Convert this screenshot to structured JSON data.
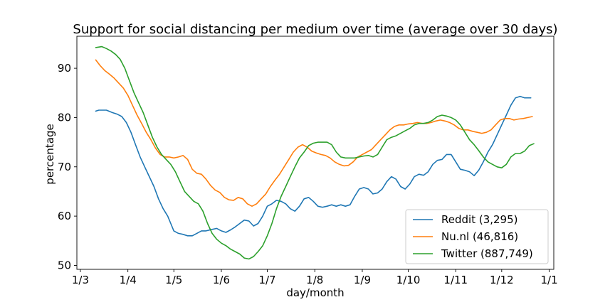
{
  "chart_data": {
    "type": "line",
    "title": "Support for social distancing per medium over time (average over 30 days)",
    "xlabel": "day/month",
    "ylabel": "percentage",
    "x_unit": "days since 1/3",
    "xlim": [
      -2.3,
      309
    ],
    "ylim": [
      49.2,
      96.5
    ],
    "xticks": [
      {
        "label": "1/3",
        "value": 0
      },
      {
        "label": "1/4",
        "value": 31
      },
      {
        "label": "1/5",
        "value": 61
      },
      {
        "label": "1/6",
        "value": 92
      },
      {
        "label": "1/7",
        "value": 122
      },
      {
        "label": "1/8",
        "value": 153
      },
      {
        "label": "1/9",
        "value": 184
      },
      {
        "label": "1/10",
        "value": 214
      },
      {
        "label": "1/11",
        "value": 245
      },
      {
        "label": "1/12",
        "value": 275
      },
      {
        "label": "1/1",
        "value": 306
      }
    ],
    "yticks": [
      50,
      60,
      70,
      80,
      90
    ],
    "legend_position": "lower-right",
    "series": [
      {
        "name": "Reddit (3,295)",
        "color": "#1f77b4",
        "points": [
          [
            10,
            81.3
          ],
          [
            12,
            81.5
          ],
          [
            17,
            81.5
          ],
          [
            21,
            81.0
          ],
          [
            24,
            80.7
          ],
          [
            27,
            80.2
          ],
          [
            30,
            79.0
          ],
          [
            33,
            77.0
          ],
          [
            36,
            74.5
          ],
          [
            39,
            72.0
          ],
          [
            42,
            70.0
          ],
          [
            45,
            68.0
          ],
          [
            48,
            66.0
          ],
          [
            51,
            63.5
          ],
          [
            54,
            61.5
          ],
          [
            57,
            60.0
          ],
          [
            59,
            58.5
          ],
          [
            61,
            57.0
          ],
          [
            64,
            56.5
          ],
          [
            67,
            56.3
          ],
          [
            70,
            56.0
          ],
          [
            73,
            56.0
          ],
          [
            76,
            56.5
          ],
          [
            79,
            57.0
          ],
          [
            82,
            57.0
          ],
          [
            86,
            57.3
          ],
          [
            89,
            57.5
          ],
          [
            92,
            57.0
          ],
          [
            95,
            56.7
          ],
          [
            98,
            57.2
          ],
          [
            101,
            57.8
          ],
          [
            104,
            58.5
          ],
          [
            107,
            59.2
          ],
          [
            110,
            59.0
          ],
          [
            113,
            58.0
          ],
          [
            116,
            58.5
          ],
          [
            119,
            60.0
          ],
          [
            122,
            62.0
          ],
          [
            125,
            62.5
          ],
          [
            128,
            63.2
          ],
          [
            131,
            63.0
          ],
          [
            134,
            62.5
          ],
          [
            137,
            61.5
          ],
          [
            140,
            61.0
          ],
          [
            143,
            62.0
          ],
          [
            146,
            63.5
          ],
          [
            149,
            63.8
          ],
          [
            152,
            63.0
          ],
          [
            155,
            62.0
          ],
          [
            158,
            61.8
          ],
          [
            161,
            62.0
          ],
          [
            164,
            62.3
          ],
          [
            167,
            62.0
          ],
          [
            170,
            62.3
          ],
          [
            173,
            62.0
          ],
          [
            176,
            62.3
          ],
          [
            179,
            64.0
          ],
          [
            182,
            65.5
          ],
          [
            185,
            65.8
          ],
          [
            188,
            65.5
          ],
          [
            191,
            64.5
          ],
          [
            194,
            64.7
          ],
          [
            197,
            65.5
          ],
          [
            200,
            67.0
          ],
          [
            203,
            68.0
          ],
          [
            206,
            67.5
          ],
          [
            209,
            66.0
          ],
          [
            212,
            65.5
          ],
          [
            215,
            66.5
          ],
          [
            218,
            68.0
          ],
          [
            221,
            68.5
          ],
          [
            224,
            68.3
          ],
          [
            227,
            69.0
          ],
          [
            230,
            70.5
          ],
          [
            233,
            71.3
          ],
          [
            236,
            71.5
          ],
          [
            239,
            72.5
          ],
          [
            242,
            72.5
          ],
          [
            245,
            71.0
          ],
          [
            248,
            69.5
          ],
          [
            251,
            69.3
          ],
          [
            254,
            69.0
          ],
          [
            257,
            68.2
          ],
          [
            260,
            69.3
          ],
          [
            263,
            71.0
          ],
          [
            266,
            73.0
          ],
          [
            269,
            74.5
          ],
          [
            272,
            76.5
          ],
          [
            275,
            78.5
          ],
          [
            278,
            80.5
          ],
          [
            281,
            82.5
          ],
          [
            284,
            84.0
          ],
          [
            287,
            84.3
          ],
          [
            290,
            84.0
          ],
          [
            294,
            84.0
          ]
        ]
      },
      {
        "name": "Nu.nl (46,816)",
        "color": "#ff7f0e",
        "points": [
          [
            10,
            91.7
          ],
          [
            13,
            90.5
          ],
          [
            16,
            89.5
          ],
          [
            19,
            88.8
          ],
          [
            22,
            88.0
          ],
          [
            25,
            87.0
          ],
          [
            28,
            86.0
          ],
          [
            31,
            84.5
          ],
          [
            34,
            82.5
          ],
          [
            37,
            80.5
          ],
          [
            40,
            78.8
          ],
          [
            43,
            77.0
          ],
          [
            46,
            75.5
          ],
          [
            49,
            73.8
          ],
          [
            52,
            72.5
          ],
          [
            55,
            72.0
          ],
          [
            58,
            72.0
          ],
          [
            61,
            71.8
          ],
          [
            64,
            72.0
          ],
          [
            67,
            72.3
          ],
          [
            70,
            71.5
          ],
          [
            73,
            69.5
          ],
          [
            76,
            68.7
          ],
          [
            79,
            68.5
          ],
          [
            82,
            67.5
          ],
          [
            85,
            66.2
          ],
          [
            88,
            65.3
          ],
          [
            91,
            64.8
          ],
          [
            94,
            63.8
          ],
          [
            97,
            63.3
          ],
          [
            100,
            63.2
          ],
          [
            103,
            63.8
          ],
          [
            106,
            63.5
          ],
          [
            109,
            62.5
          ],
          [
            112,
            62.0
          ],
          [
            115,
            62.5
          ],
          [
            118,
            63.5
          ],
          [
            121,
            64.5
          ],
          [
            124,
            66.0
          ],
          [
            127,
            67.3
          ],
          [
            130,
            68.5
          ],
          [
            133,
            70.0
          ],
          [
            136,
            71.5
          ],
          [
            139,
            73.0
          ],
          [
            142,
            74.0
          ],
          [
            145,
            74.5
          ],
          [
            148,
            74.0
          ],
          [
            151,
            73.2
          ],
          [
            154,
            72.8
          ],
          [
            157,
            72.5
          ],
          [
            160,
            72.3
          ],
          [
            163,
            71.8
          ],
          [
            166,
            71.0
          ],
          [
            169,
            70.5
          ],
          [
            172,
            70.2
          ],
          [
            175,
            70.3
          ],
          [
            178,
            71.0
          ],
          [
            181,
            72.0
          ],
          [
            184,
            72.5
          ],
          [
            187,
            73.0
          ],
          [
            190,
            73.5
          ],
          [
            193,
            74.5
          ],
          [
            196,
            75.5
          ],
          [
            199,
            76.5
          ],
          [
            202,
            77.5
          ],
          [
            205,
            78.2
          ],
          [
            208,
            78.5
          ],
          [
            211,
            78.5
          ],
          [
            214,
            78.7
          ],
          [
            217,
            78.8
          ],
          [
            220,
            79.0
          ],
          [
            223,
            78.8
          ],
          [
            226,
            78.8
          ],
          [
            229,
            79.0
          ],
          [
            232,
            79.3
          ],
          [
            235,
            79.5
          ],
          [
            238,
            79.3
          ],
          [
            241,
            79.0
          ],
          [
            244,
            78.5
          ],
          [
            247,
            77.8
          ],
          [
            250,
            77.5
          ],
          [
            253,
            77.5
          ],
          [
            256,
            77.2
          ],
          [
            259,
            77.0
          ],
          [
            262,
            76.8
          ],
          [
            265,
            77.0
          ],
          [
            268,
            77.5
          ],
          [
            271,
            78.5
          ],
          [
            274,
            79.5
          ],
          [
            277,
            79.8
          ],
          [
            280,
            79.8
          ],
          [
            283,
            79.5
          ],
          [
            286,
            79.7
          ],
          [
            289,
            79.8
          ],
          [
            292,
            80.0
          ],
          [
            295,
            80.2
          ]
        ]
      },
      {
        "name": "Twitter (887,749)",
        "color": "#2ca02c",
        "points": [
          [
            10,
            94.2
          ],
          [
            14,
            94.4
          ],
          [
            17,
            94.0
          ],
          [
            20,
            93.5
          ],
          [
            23,
            92.8
          ],
          [
            26,
            91.8
          ],
          [
            29,
            90.0
          ],
          [
            32,
            87.5
          ],
          [
            35,
            85.0
          ],
          [
            38,
            83.0
          ],
          [
            41,
            81.0
          ],
          [
            44,
            78.5
          ],
          [
            47,
            76.0
          ],
          [
            50,
            74.0
          ],
          [
            53,
            72.5
          ],
          [
            56,
            71.5
          ],
          [
            59,
            70.5
          ],
          [
            62,
            69.0
          ],
          [
            65,
            67.0
          ],
          [
            68,
            65.0
          ],
          [
            71,
            64.0
          ],
          [
            74,
            63.0
          ],
          [
            77,
            62.5
          ],
          [
            80,
            61.0
          ],
          [
            83,
            58.5
          ],
          [
            86,
            56.5
          ],
          [
            89,
            55.3
          ],
          [
            92,
            54.5
          ],
          [
            95,
            54.0
          ],
          [
            98,
            53.3
          ],
          [
            101,
            52.8
          ],
          [
            104,
            52.3
          ],
          [
            107,
            51.5
          ],
          [
            110,
            51.3
          ],
          [
            113,
            51.8
          ],
          [
            116,
            52.8
          ],
          [
            119,
            54.0
          ],
          [
            122,
            56.0
          ],
          [
            125,
            58.5
          ],
          [
            128,
            61.5
          ],
          [
            131,
            64.0
          ],
          [
            134,
            66.0
          ],
          [
            137,
            68.0
          ],
          [
            140,
            70.0
          ],
          [
            143,
            71.8
          ],
          [
            146,
            73.0
          ],
          [
            149,
            74.3
          ],
          [
            152,
            74.8
          ],
          [
            155,
            75.0
          ],
          [
            158,
            75.0
          ],
          [
            161,
            75.0
          ],
          [
            164,
            74.5
          ],
          [
            167,
            73.0
          ],
          [
            170,
            72.0
          ],
          [
            173,
            71.8
          ],
          [
            176,
            71.8
          ],
          [
            179,
            71.8
          ],
          [
            182,
            72.0
          ],
          [
            185,
            72.2
          ],
          [
            188,
            72.3
          ],
          [
            191,
            72.0
          ],
          [
            194,
            72.5
          ],
          [
            197,
            74.0
          ],
          [
            200,
            75.5
          ],
          [
            203,
            76.0
          ],
          [
            206,
            76.3
          ],
          [
            209,
            76.8
          ],
          [
            212,
            77.3
          ],
          [
            215,
            77.8
          ],
          [
            218,
            78.5
          ],
          [
            221,
            78.8
          ],
          [
            224,
            78.8
          ],
          [
            227,
            79.0
          ],
          [
            230,
            79.5
          ],
          [
            233,
            80.2
          ],
          [
            236,
            80.5
          ],
          [
            239,
            80.3
          ],
          [
            242,
            80.0
          ],
          [
            245,
            79.5
          ],
          [
            248,
            78.5
          ],
          [
            251,
            77.0
          ],
          [
            254,
            75.5
          ],
          [
            257,
            74.5
          ],
          [
            260,
            73.3
          ],
          [
            263,
            72.0
          ],
          [
            266,
            71.0
          ],
          [
            269,
            70.5
          ],
          [
            272,
            70.0
          ],
          [
            275,
            69.8
          ],
          [
            278,
            70.5
          ],
          [
            281,
            72.0
          ],
          [
            284,
            72.7
          ],
          [
            287,
            72.7
          ],
          [
            290,
            73.2
          ],
          [
            293,
            74.3
          ],
          [
            296,
            74.7
          ]
        ]
      }
    ]
  }
}
